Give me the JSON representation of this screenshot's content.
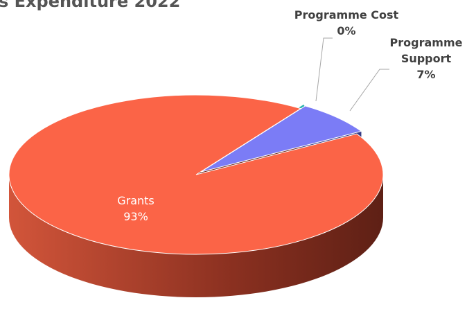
{
  "chart_data": {
    "type": "pie3d",
    "title": "s Expenditure 2022",
    "categories": [
      "Programme Cost",
      "Programme Support",
      "Grants"
    ],
    "values": [
      0,
      7,
      93
    ],
    "value_labels": [
      "0%",
      "7%",
      "93%"
    ],
    "colors": [
      "#2ab3ad",
      "#7b7cf6",
      "#fb6447"
    ],
    "side_colors": [
      "#1d7a76",
      "#363c86",
      "#6a2417"
    ]
  }
}
